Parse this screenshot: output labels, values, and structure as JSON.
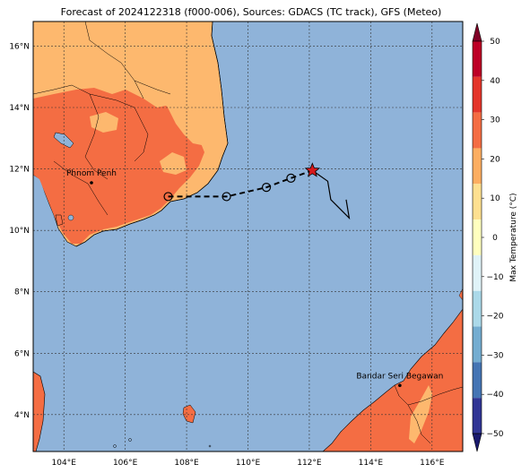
{
  "title": "Forecast of 2024122318 (f000-006), Sources: GDACS (TC track), GFS (Meteo)",
  "map": {
    "lon_ticks": [
      "104°E",
      "106°E",
      "108°E",
      "110°E",
      "112°E",
      "114°E",
      "116°E"
    ],
    "lat_ticks": [
      "4°N",
      "6°N",
      "8°N",
      "10°N",
      "12°N",
      "14°N",
      "16°N"
    ],
    "lon_range": [
      103.0,
      117.0
    ],
    "lat_range": [
      2.8,
      16.8
    ],
    "gridlines": true,
    "ocean_color": "#8fb3d9"
  },
  "cities": [
    {
      "name": "Phnom Penh",
      "lon": 104.9,
      "lat": 11.55
    },
    {
      "name": "Bandar Seri Begawan",
      "lon": 114.95,
      "lat": 4.95
    }
  ],
  "track": {
    "forecast_points": [
      {
        "lon": 107.4,
        "lat": 11.1
      },
      {
        "lon": 109.3,
        "lat": 11.1
      },
      {
        "lon": 110.6,
        "lat": 11.4
      },
      {
        "lon": 111.4,
        "lat": 11.7
      }
    ],
    "current_position": {
      "lon": 112.1,
      "lat": 11.95
    },
    "past_track": [
      {
        "lon": 112.1,
        "lat": 11.95
      },
      {
        "lon": 112.6,
        "lat": 11.6
      },
      {
        "lon": 112.7,
        "lat": 11.0
      },
      {
        "lon": 113.3,
        "lat": 10.4
      },
      {
        "lon": 113.2,
        "lat": 11.0
      }
    ]
  },
  "colorbar": {
    "label": "Max Temperature (°C)",
    "ticks": [
      "50",
      "40",
      "30",
      "20",
      "10",
      "0",
      "−10",
      "−20",
      "−30",
      "−40",
      "−50"
    ],
    "colors": [
      "#800026",
      "#bd0026",
      "#e4362b",
      "#f46d43",
      "#fdae61",
      "#fee090",
      "#ffffbf",
      "#e0f3f8",
      "#abd9e9",
      "#74add1",
      "#4575b4",
      "#313695",
      "#1a1a6e"
    ]
  },
  "legend_colors": {
    "land_hot": "#f46d43",
    "land_warm": "#fdb86e",
    "ocean": "#8fb3d9",
    "star": "#d7191c"
  }
}
